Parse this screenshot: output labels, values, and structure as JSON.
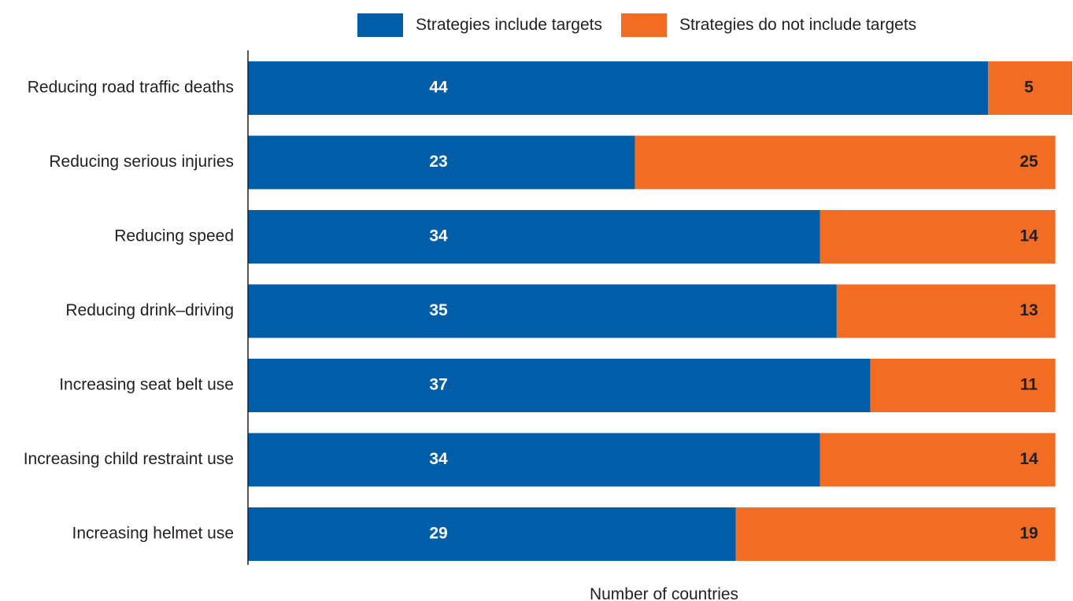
{
  "chart_data": {
    "type": "bar",
    "orientation": "horizontal",
    "stacked": true,
    "categories": [
      "Reducing road traffic deaths",
      "Reducing serious injuries",
      "Reducing speed",
      "Reducing drink–driving",
      "Increasing seat belt use",
      "Increasing child restraint use",
      "Increasing helmet use"
    ],
    "series": [
      {
        "name": "Strategies include targets",
        "color": "#005da8",
        "values": [
          44,
          23,
          34,
          35,
          37,
          34,
          29
        ]
      },
      {
        "name": "Strategies do not include targets",
        "color": "#f26c24",
        "values": [
          5,
          25,
          14,
          13,
          11,
          14,
          19
        ]
      }
    ],
    "title": "",
    "xlabel": "Number of countries",
    "ylabel": "",
    "xlim": [
      0,
      49
    ],
    "grid": false,
    "legend_position": "top"
  }
}
